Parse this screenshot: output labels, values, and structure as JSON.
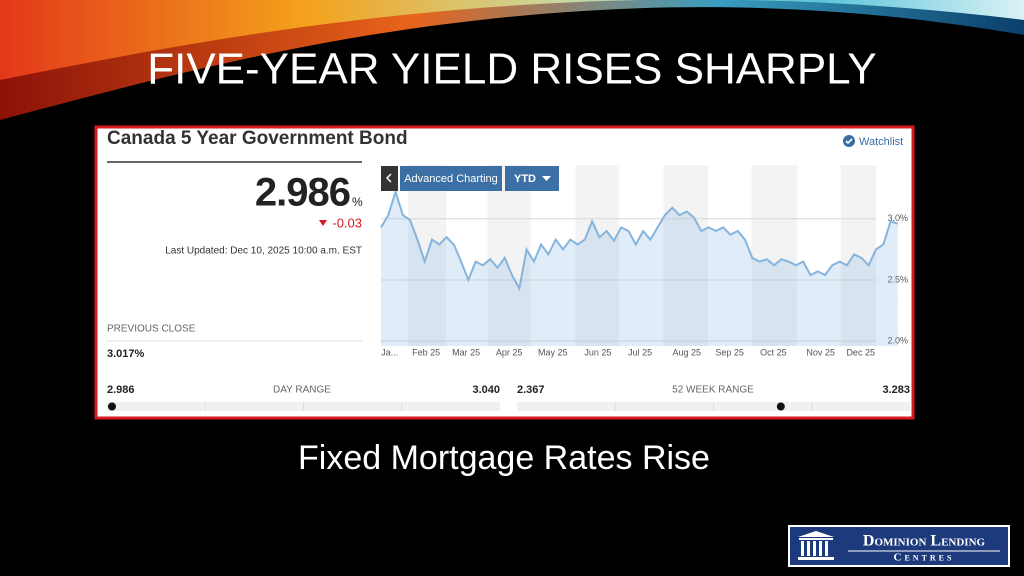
{
  "slide": {
    "title": "FIVE-YEAR YIELD RISES SHARPLY",
    "caption": "Fixed Mortgage Rates Rise",
    "logo": {
      "line1": "Dominion Lending",
      "line2": "Centres"
    }
  },
  "widget": {
    "title": "Canada 5 Year Government Bond",
    "watchlist": "Watchlist",
    "price": "2.986",
    "price_unit": "%",
    "change": "-0.03",
    "last_updated": "Last Updated: Dec 10, 2025 10:00 a.m. EST",
    "previous_close_label": "PREVIOUS CLOSE",
    "previous_close": "3.017%",
    "buttons": [
      "Advanced Charting",
      "YTD"
    ],
    "day_range": {
      "low": "2.986",
      "label": "DAY RANGE",
      "high": "3.040"
    },
    "week52_range": {
      "low": "2.367",
      "label": "52 WEEK RANGE",
      "high": "3.283"
    }
  },
  "chart_data": {
    "type": "line",
    "xlim": [
      0,
      68
    ],
    "xticks": [
      {
        "value": 1.2,
        "label": "Ja..."
      },
      {
        "value": 6.2,
        "label": "Feb 25"
      },
      {
        "value": 11.7,
        "label": "Mar 25"
      },
      {
        "value": 17.6,
        "label": "Apr 25"
      },
      {
        "value": 23.6,
        "label": "May 25"
      },
      {
        "value": 29.8,
        "label": "Jun 25"
      },
      {
        "value": 35.6,
        "label": "Jul 25"
      },
      {
        "value": 42.0,
        "label": "Aug 25"
      },
      {
        "value": 47.9,
        "label": "Sep 25"
      },
      {
        "value": 53.9,
        "label": "Oct 25"
      },
      {
        "value": 60.4,
        "label": "Nov 25"
      },
      {
        "value": 65.9,
        "label": "Dec 25"
      }
    ],
    "ylim": [
      1.96,
      3.44
    ],
    "yticks": [
      {
        "value": 2.0,
        "label": "2.0%"
      },
      {
        "value": 2.5,
        "label": "2.5%"
      },
      {
        "value": 3.0,
        "label": "3.0%"
      }
    ],
    "grid": true,
    "series": [
      {
        "color": "#85b4de",
        "values": [
          2.93,
          3.03,
          3.22,
          3.03,
          2.99,
          2.83,
          2.65,
          2.83,
          2.79,
          2.85,
          2.79,
          2.65,
          2.5,
          2.65,
          2.62,
          2.67,
          2.6,
          2.68,
          2.54,
          2.43,
          2.75,
          2.65,
          2.79,
          2.71,
          2.83,
          2.75,
          2.83,
          2.79,
          2.83,
          2.98,
          2.85,
          2.9,
          2.82,
          2.93,
          2.9,
          2.79,
          2.9,
          2.83,
          2.93,
          3.03,
          3.09,
          3.03,
          3.06,
          3.01,
          2.9,
          2.93,
          2.9,
          2.93,
          2.87,
          2.9,
          2.83,
          2.68,
          2.65,
          2.67,
          2.62,
          2.67,
          2.65,
          2.62,
          2.65,
          2.54,
          2.57,
          2.54,
          2.62,
          2.65,
          2.62,
          2.71,
          2.68,
          2.62,
          2.75,
          2.79,
          2.98,
          2.96
        ]
      }
    ]
  }
}
